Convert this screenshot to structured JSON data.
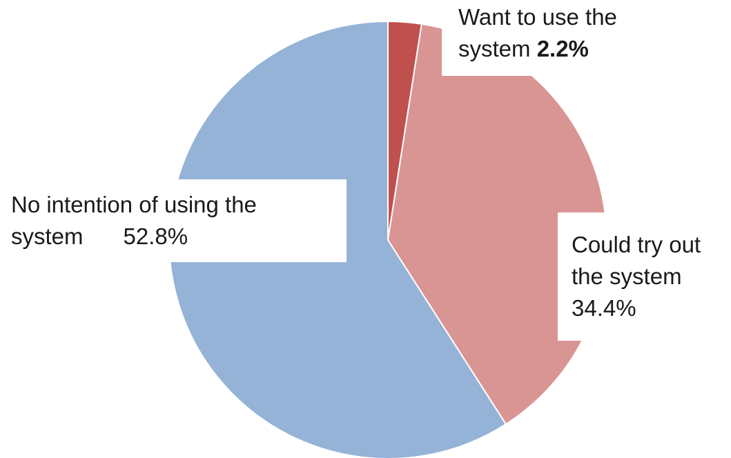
{
  "chart_data": {
    "type": "pie",
    "slices": [
      {
        "label": "Want to use the system",
        "value": 2.2,
        "display": "2.2%",
        "color": "#c0504d"
      },
      {
        "label": "Could try out the system",
        "value": 34.4,
        "display": "34.4%",
        "color": "#d99594"
      },
      {
        "label": "No intention of using the system",
        "value": 52.8,
        "display": "52.8%",
        "color": "#95b3d7"
      }
    ],
    "labels": {
      "want": {
        "text_lines": [
          "Want to use the",
          "system"
        ],
        "value": "2.2%"
      },
      "could": {
        "text_lines": [
          "Could try out",
          "the system"
        ],
        "value": "34.4%"
      },
      "none": {
        "text_lines": [
          "No intention of using the",
          "system"
        ],
        "value": "52.8%"
      }
    },
    "start_angle": "12 o'clock",
    "direction": "clockwise",
    "legend": "none (data labels on slices)"
  }
}
